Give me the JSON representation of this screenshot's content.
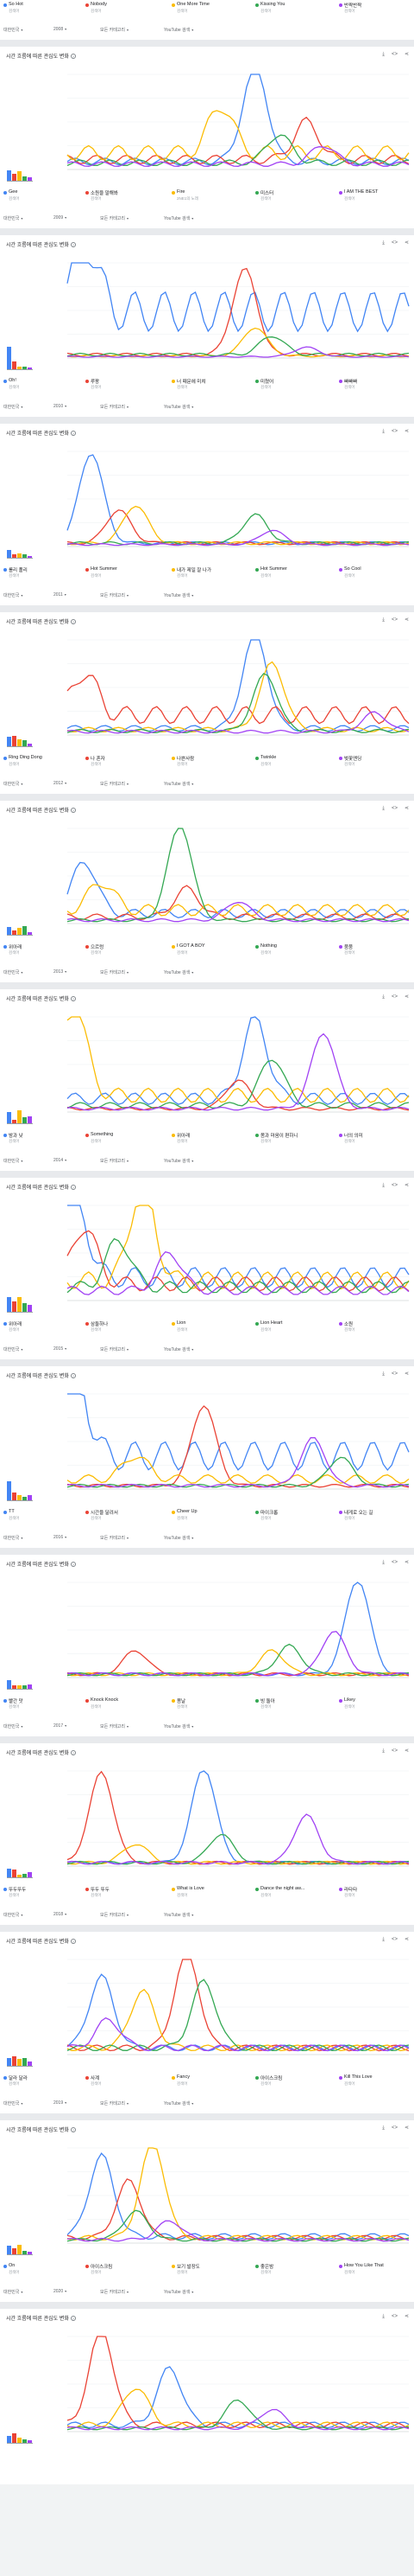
{
  "colors": [
    "#4285f4",
    "#ea4335",
    "#fbbc04",
    "#34a853",
    "#a142f4"
  ],
  "card_title": "시간 흐름에 따른 관심도 변화",
  "legend_sub": "검색어",
  "filter_labels": {
    "region": "대한민국",
    "category": "모든 카테고리",
    "search_type": "YouTube 검색"
  },
  "tool_icons": [
    "download-icon",
    "embed-icon",
    "share-icon"
  ],
  "cards": [
    {
      "terms": [
        "So Hot",
        "Nobody",
        "One More Time",
        "Kissing You",
        "반짝반짝"
      ],
      "subs": [
        "검색어",
        "검색어",
        "검색어",
        "검색어",
        "검색어"
      ],
      "year": "2008",
      "has_chart": false
    },
    {
      "terms": [
        "Gee",
        "소원을 말해봐",
        "Fire",
        "미스터",
        "I AM THE BEST"
      ],
      "subs": [
        "검색어",
        "검색어",
        "2NE1의 노래",
        "검색어",
        "검색어"
      ],
      "year": "2009",
      "has_chart": true,
      "chart_data": {
        "type": "line",
        "series_levels": [
          0.12,
          0.15,
          0.25,
          0.1,
          0.08
        ],
        "peaks": [
          [
            0.55,
            1.0
          ],
          [
            0.7,
            0.4
          ],
          [
            0.45,
            0.5
          ],
          [
            0.62,
            0.3
          ],
          [
            0.75,
            0.2
          ]
        ]
      }
    },
    {
      "terms": [
        "Oh!",
        "루팡",
        "너 때문에 미쳐",
        "미쳤어",
        "빠빠빠"
      ],
      "subs": [
        "검색어",
        "검색어",
        "검색어",
        "검색어",
        "검색어"
      ],
      "year": "2010",
      "has_chart": true,
      "chart_data": {
        "type": "line",
        "series_levels": [
          0.7,
          0.05,
          0.03,
          0.05,
          0.02
        ],
        "peaks": [
          [
            0.05,
            0.8
          ],
          [
            0.52,
            0.9
          ],
          [
            0.55,
            0.3
          ],
          [
            0.6,
            0.2
          ],
          [
            0.7,
            0.1
          ]
        ]
      }
    },
    {
      "terms": [
        "롤리 폴리",
        "Hot Summer",
        "내가 제일 잘 나가",
        "Hot Summer",
        "So Cool"
      ],
      "subs": [
        "검색어",
        "검색어",
        "검색어",
        "검색어",
        "검색어"
      ],
      "year": "2011",
      "has_chart": true,
      "chart_data": {
        "type": "line",
        "series_levels": [
          0.05,
          0.05,
          0.05,
          0.05,
          0.03
        ],
        "peaks": [
          [
            0.07,
            0.95
          ],
          [
            0.15,
            0.35
          ],
          [
            0.2,
            0.4
          ],
          [
            0.55,
            0.3
          ],
          [
            0.6,
            0.15
          ]
        ]
      }
    },
    {
      "terms": [
        "Ring Ding Dong",
        "나 혼자",
        "나쁜사람",
        "Twinkle",
        "벚꽃엔딩"
      ],
      "subs": [
        "검색어",
        "검색어",
        "검색어",
        "검색어",
        "검색어"
      ],
      "year": "2012",
      "has_chart": true,
      "chart_data": {
        "type": "line",
        "series_levels": [
          0.1,
          0.3,
          0.08,
          0.06,
          0.05
        ],
        "peaks": [
          [
            0.55,
            1.0
          ],
          [
            0.05,
            0.45
          ],
          [
            0.6,
            0.7
          ],
          [
            0.58,
            0.6
          ],
          [
            0.9,
            0.2
          ]
        ]
      }
    },
    {
      "terms": [
        "위아래",
        "으르렁",
        "I GOT A BOY",
        "Nothing",
        "붐붐"
      ],
      "subs": [
        "검색어",
        "검색어",
        "검색어",
        "검색어",
        "검색어"
      ],
      "year": "2013",
      "has_chart": true,
      "chart_data": {
        "type": "line",
        "series_levels": [
          0.15,
          0.1,
          0.2,
          0.05,
          0.05
        ],
        "peaks": [
          [
            0.05,
            0.55
          ],
          [
            0.35,
            0.3
          ],
          [
            0.1,
            0.3
          ],
          [
            0.33,
            1.0
          ],
          [
            0.5,
            0.2
          ]
        ]
      }
    },
    {
      "terms": [
        "밤과 낮",
        "Something",
        "위아래",
        "몸과 마음이 편하니",
        "너의 의미"
      ],
      "subs": [
        "검색어",
        "검색어",
        "검색어",
        "검색어",
        "검색어"
      ],
      "year": "2014",
      "has_chart": true,
      "chart_data": {
        "type": "line",
        "series_levels": [
          0.2,
          0.05,
          0.25,
          0.1,
          0.05
        ],
        "peaks": [
          [
            0.55,
            0.85
          ],
          [
            0.5,
            0.3
          ],
          [
            0.02,
            0.95
          ],
          [
            0.6,
            0.5
          ],
          [
            0.75,
            0.8
          ]
        ]
      }
    },
    {
      "terms": [
        "위아래",
        "삼둘하나",
        "Lion",
        "Lion Heart",
        "소원"
      ],
      "subs": [
        "검색어",
        "검색어",
        "검색어",
        "검색어",
        "검색어"
      ],
      "year": "2015",
      "has_chart": true,
      "chart_data": {
        "type": "line",
        "series_levels": [
          0.35,
          0.25,
          0.3,
          0.2,
          0.15
        ],
        "peaks": [
          [
            0.02,
            0.9
          ],
          [
            0.05,
            0.6
          ],
          [
            0.22,
            1.0
          ],
          [
            0.15,
            0.5
          ],
          [
            0.3,
            0.4
          ]
        ]
      }
    },
    {
      "terms": [
        "TT",
        "시간을 달려서",
        "Cheer Up",
        "마이크롭",
        "내게로 오는 길"
      ],
      "subs": [
        "검색어",
        "검색어",
        "검색어",
        "검색어",
        "검색어"
      ],
      "year": "2016",
      "has_chart": true,
      "chart_data": {
        "type": "line",
        "series_levels": [
          0.5,
          0.05,
          0.15,
          0.05,
          0.05
        ],
        "peaks": [
          [
            0.02,
            1.0
          ],
          [
            0.4,
            0.85
          ],
          [
            0.2,
            0.25
          ],
          [
            0.8,
            0.3
          ],
          [
            0.72,
            0.5
          ]
        ]
      }
    },
    {
      "terms": [
        "빨간 맛",
        "Knock Knock",
        "봄날",
        "빙 돌아",
        "Likey"
      ],
      "subs": [
        "검색어",
        "검색어",
        "검색어",
        "검색어",
        "검색어"
      ],
      "year": "2017",
      "has_chart": true,
      "chart_data": {
        "type": "line",
        "series_levels": [
          0.05,
          0.05,
          0.05,
          0.05,
          0.05
        ],
        "peaks": [
          [
            0.85,
            1.0
          ],
          [
            0.2,
            0.25
          ],
          [
            0.6,
            0.25
          ],
          [
            0.65,
            0.3
          ],
          [
            0.78,
            0.45
          ]
        ]
      }
    },
    {
      "terms": [
        "뚜두뚜두",
        "뚜두 뚜두",
        "What is Love",
        "Dance the night aw...",
        "라타타"
      ],
      "subs": [
        "검색어",
        "검색어",
        "검색어",
        "검색어",
        "검색어"
      ],
      "year": "2018",
      "has_chart": true,
      "chart_data": {
        "type": "line",
        "series_levels": [
          0.05,
          0.05,
          0.05,
          0.05,
          0.05
        ],
        "peaks": [
          [
            0.4,
            1.0
          ],
          [
            0.1,
            0.95
          ],
          [
            0.2,
            0.2
          ],
          [
            0.45,
            0.3
          ],
          [
            0.7,
            0.5
          ]
        ]
      }
    },
    {
      "terms": [
        "달라 달라",
        "사계",
        "Fancy",
        "아이스크림",
        "Kill This Love"
      ],
      "subs": [
        "검색어",
        "검색어",
        "검색어",
        "검색어",
        "검색어"
      ],
      "year": "2019",
      "has_chart": true,
      "chart_data": {
        "type": "line",
        "series_levels": [
          0.1,
          0.1,
          0.1,
          0.1,
          0.1
        ],
        "peaks": [
          [
            0.1,
            0.75
          ],
          [
            0.35,
            1.0
          ],
          [
            0.22,
            0.6
          ],
          [
            0.4,
            0.7
          ],
          [
            0.12,
            0.3
          ]
        ]
      }
    },
    {
      "terms": [
        "On",
        "아이스크림",
        "보기 발장도",
        "좋은밤",
        "How You Like That"
      ],
      "subs": [
        "검색어",
        "검색어",
        "검색어",
        "검색어",
        "검색어"
      ],
      "year": "2020",
      "has_chart": true,
      "chart_data": {
        "type": "line",
        "series_levels": [
          0.1,
          0.08,
          0.08,
          0.05,
          0.05
        ],
        "peaks": [
          [
            0.1,
            0.85
          ],
          [
            0.18,
            0.6
          ],
          [
            0.25,
            1.0
          ],
          [
            0.2,
            0.3
          ],
          [
            0.3,
            0.2
          ]
        ]
      }
    },
    {
      "terms": [],
      "subs": [],
      "year": "",
      "has_chart": true,
      "partial": true,
      "chart_data": {
        "type": "line",
        "series_levels": [
          0.1,
          0.1,
          0.1,
          0.05,
          0.05
        ],
        "peaks": [
          [
            0.3,
            0.6
          ],
          [
            0.1,
            1.0
          ],
          [
            0.2,
            0.4
          ],
          [
            0.5,
            0.3
          ],
          [
            0.6,
            0.2
          ]
        ]
      }
    }
  ]
}
